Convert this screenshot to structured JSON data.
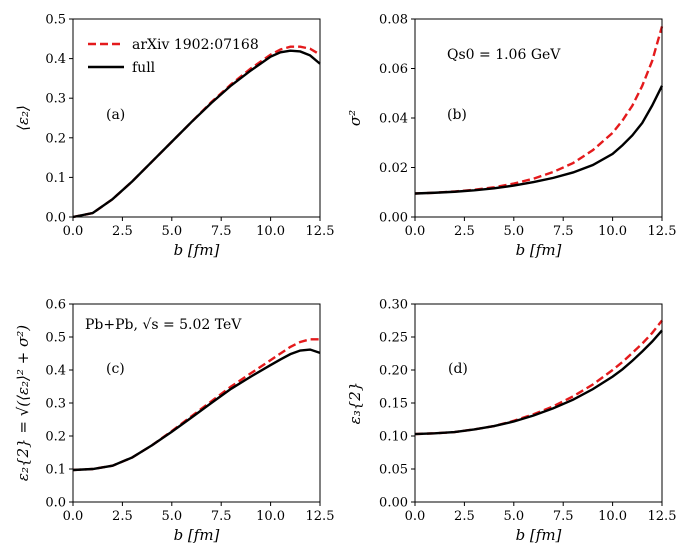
{
  "figure": {
    "legend": {
      "entries": [
        {
          "label": "arXiv 1902:07168",
          "color": "#e41a1c",
          "style": "dashed"
        },
        {
          "label": "full",
          "color": "#000000",
          "style": "solid"
        }
      ]
    }
  },
  "chart_data": [
    {
      "type": "line",
      "panel_label": "(a)",
      "xlabel": "b [fm]",
      "ylabel": "⟨ε₂⟩",
      "xlim": [
        0,
        12.5
      ],
      "ylim": [
        0,
        0.5
      ],
      "xticks": [
        "0.0",
        "2.5",
        "5.0",
        "7.5",
        "10.0",
        "12.5"
      ],
      "yticks": [
        "0.0",
        "0.1",
        "0.2",
        "0.3",
        "0.4",
        "0.5"
      ],
      "annotation": "",
      "x": [
        0,
        1,
        2,
        3,
        4,
        5,
        6,
        7,
        8,
        9,
        10,
        10.5,
        11,
        11.5,
        12,
        12.5
      ],
      "series": [
        {
          "name": "arXiv 1902:07168",
          "color": "#e41a1c",
          "dash": true,
          "values": [
            0.0,
            0.01,
            0.045,
            0.09,
            0.14,
            0.19,
            0.24,
            0.29,
            0.335,
            0.375,
            0.41,
            0.423,
            0.43,
            0.43,
            0.425,
            0.41
          ]
        },
        {
          "name": "full",
          "color": "#000000",
          "dash": false,
          "values": [
            0.0,
            0.01,
            0.045,
            0.09,
            0.14,
            0.19,
            0.24,
            0.288,
            0.332,
            0.37,
            0.405,
            0.416,
            0.42,
            0.418,
            0.408,
            0.387
          ]
        }
      ]
    },
    {
      "type": "line",
      "panel_label": "(b)",
      "xlabel": "b [fm]",
      "ylabel": "σ²",
      "xlim": [
        0,
        12.5
      ],
      "ylim": [
        0,
        0.08
      ],
      "xticks": [
        "0.0",
        "2.5",
        "5.0",
        "7.5",
        "10.0",
        "12.5"
      ],
      "yticks": [
        "0.00",
        "0.02",
        "0.04",
        "0.06",
        "0.08"
      ],
      "annotation": "Qs0 = 1.06 GeV",
      "x": [
        0,
        1,
        2,
        3,
        4,
        5,
        6,
        7,
        8,
        9,
        10,
        10.5,
        11,
        11.5,
        12,
        12.5
      ],
      "series": [
        {
          "name": "arXiv 1902:07168",
          "color": "#e41a1c",
          "dash": true,
          "values": [
            0.0095,
            0.0098,
            0.0103,
            0.011,
            0.012,
            0.0135,
            0.0155,
            0.0182,
            0.0218,
            0.027,
            0.034,
            0.039,
            0.045,
            0.053,
            0.063,
            0.077
          ]
        },
        {
          "name": "full",
          "color": "#000000",
          "dash": false,
          "values": [
            0.0095,
            0.0098,
            0.0102,
            0.0108,
            0.0116,
            0.0127,
            0.0141,
            0.0158,
            0.018,
            0.021,
            0.0255,
            0.029,
            0.033,
            0.038,
            0.045,
            0.053
          ]
        }
      ]
    },
    {
      "type": "line",
      "panel_label": "(c)",
      "xlabel": "b [fm]",
      "ylabel": "ε₂{2} = √(⟨ε₂⟩² + σ²)",
      "xlim": [
        0,
        12.5
      ],
      "ylim": [
        0,
        0.6
      ],
      "xticks": [
        "0.0",
        "2.5",
        "5.0",
        "7.5",
        "10.0",
        "12.5"
      ],
      "yticks": [
        "0.0",
        "0.1",
        "0.2",
        "0.3",
        "0.4",
        "0.5",
        "0.6"
      ],
      "annotation": "Pb+Pb, √s = 5.02 TeV",
      "x": [
        0,
        1,
        2,
        3,
        4,
        5,
        6,
        7,
        8,
        9,
        10,
        10.5,
        11,
        11.5,
        12,
        12.5
      ],
      "series": [
        {
          "name": "arXiv 1902:07168",
          "color": "#e41a1c",
          "dash": true,
          "values": [
            0.097,
            0.1,
            0.11,
            0.135,
            0.172,
            0.215,
            0.26,
            0.305,
            0.35,
            0.39,
            0.43,
            0.45,
            0.47,
            0.485,
            0.493,
            0.493
          ]
        },
        {
          "name": "full",
          "color": "#000000",
          "dash": false,
          "values": [
            0.097,
            0.1,
            0.11,
            0.135,
            0.172,
            0.213,
            0.256,
            0.3,
            0.343,
            0.38,
            0.415,
            0.432,
            0.448,
            0.459,
            0.462,
            0.452
          ]
        }
      ]
    },
    {
      "type": "line",
      "panel_label": "(d)",
      "xlabel": "b [fm]",
      "ylabel": "ε₃{2}",
      "xlim": [
        0,
        12.5
      ],
      "ylim": [
        0,
        0.3
      ],
      "xticks": [
        "0.0",
        "2.5",
        "5.0",
        "7.5",
        "10.0",
        "12.5"
      ],
      "yticks": [
        "0.00",
        "0.05",
        "0.10",
        "0.15",
        "0.20",
        "0.25",
        "0.30"
      ],
      "annotation": "",
      "x": [
        0,
        1,
        2,
        3,
        4,
        5,
        6,
        7,
        8,
        9,
        10,
        10.5,
        11,
        11.5,
        12,
        12.5
      ],
      "series": [
        {
          "name": "arXiv 1902:07168",
          "color": "#e41a1c",
          "dash": true,
          "values": [
            0.103,
            0.104,
            0.106,
            0.11,
            0.115,
            0.123,
            0.133,
            0.145,
            0.16,
            0.178,
            0.2,
            0.212,
            0.226,
            0.24,
            0.256,
            0.275
          ]
        },
        {
          "name": "full",
          "color": "#000000",
          "dash": false,
          "values": [
            0.103,
            0.104,
            0.106,
            0.11,
            0.115,
            0.122,
            0.131,
            0.142,
            0.155,
            0.171,
            0.19,
            0.201,
            0.214,
            0.228,
            0.243,
            0.26
          ]
        }
      ]
    }
  ]
}
